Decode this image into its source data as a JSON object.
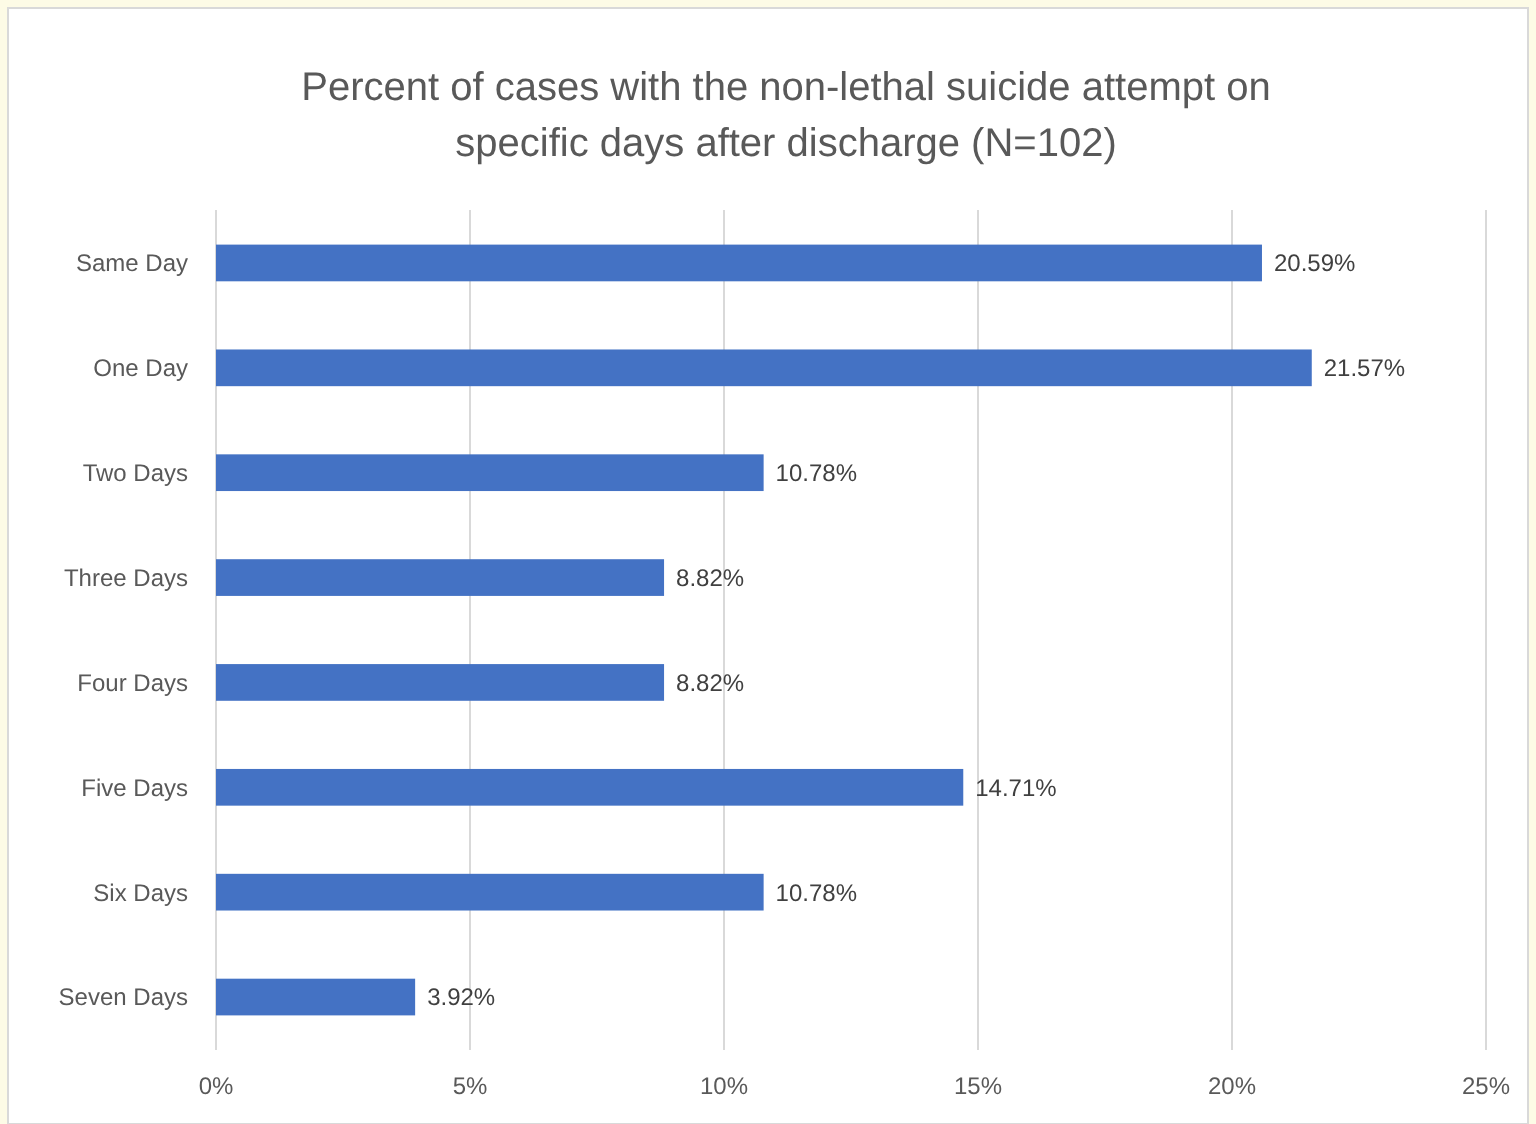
{
  "chart_data": {
    "type": "bar",
    "orientation": "horizontal",
    "title": "Percent of cases with the non-lethal suicide attempt on specific days after discharge (N=102)",
    "categories": [
      "Same Day",
      "One Day",
      "Two Days",
      "Three Days",
      "Four Days",
      "Five Days",
      "Six Days",
      "Seven Days"
    ],
    "values": [
      20.59,
      21.57,
      10.78,
      8.82,
      8.82,
      14.71,
      10.78,
      3.92
    ],
    "value_labels": [
      "20.59%",
      "21.57%",
      "10.78%",
      "8.82%",
      "8.82%",
      "14.71%",
      "10.78%",
      "3.92%"
    ],
    "color": "#4472c4",
    "xlim": [
      0,
      25
    ],
    "xticks": [
      {
        "value": 0,
        "label": "0%"
      },
      {
        "value": 5,
        "label": "5%"
      },
      {
        "value": 10,
        "label": "10%"
      },
      {
        "value": 15,
        "label": "15%"
      },
      {
        "value": 20,
        "label": "20%"
      },
      {
        "value": 25,
        "label": "25%"
      }
    ],
    "grid": "x"
  }
}
